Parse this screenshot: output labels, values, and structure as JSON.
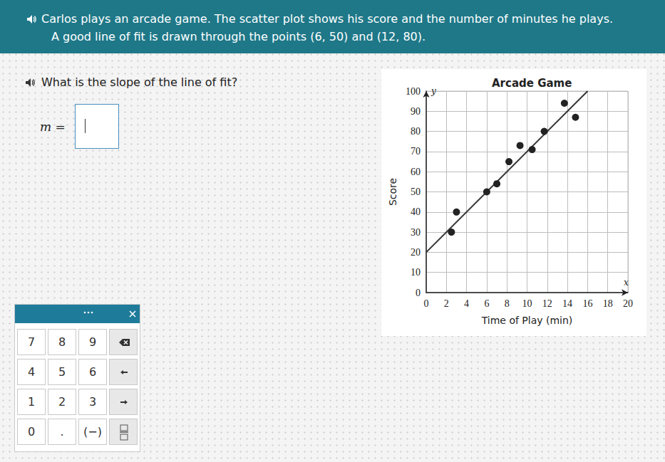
{
  "header": {
    "lines": [
      "Carlos plays an arcade game. The scatter plot shows his score and the number of minutes he plays.",
      "A good line of fit is drawn through the points (6, 50) and (12, 80)."
    ]
  },
  "question": {
    "text": "What is the slope of the line of fit?",
    "answer_label": "m ="
  },
  "keypad": {
    "rows": [
      [
        "7",
        "8",
        "9"
      ],
      [
        "4",
        "5",
        "6"
      ],
      [
        "1",
        "2",
        "3"
      ],
      [
        "0",
        ".",
        "(−)"
      ]
    ]
  },
  "chart_data": {
    "type": "scatter",
    "title": "Arcade Game",
    "x_label": "Time of Play (min)",
    "y_label": "Score",
    "x_symbol": "x",
    "y_symbol": "y",
    "xlim": [
      0,
      20
    ],
    "ylim": [
      0,
      100
    ],
    "xticks": [
      0,
      2,
      4,
      6,
      8,
      10,
      12,
      14,
      16,
      18,
      20
    ],
    "yticks": [
      0,
      10,
      20,
      30,
      40,
      50,
      60,
      70,
      80,
      90,
      100
    ],
    "grid": true,
    "series": [
      {
        "type": "scatter",
        "color": "#222222",
        "marker": "circle",
        "x": [
          2.5,
          3,
          6,
          7,
          8.2,
          9.3,
          10.5,
          11.7,
          13.7,
          14.8
        ],
        "values": [
          30,
          40,
          50,
          54,
          65,
          73,
          71,
          80,
          94,
          87
        ]
      },
      {
        "type": "line",
        "color": "#333333",
        "line_style": "solid",
        "x": [
          0,
          16
        ],
        "values": [
          20,
          100
        ]
      }
    ]
  }
}
